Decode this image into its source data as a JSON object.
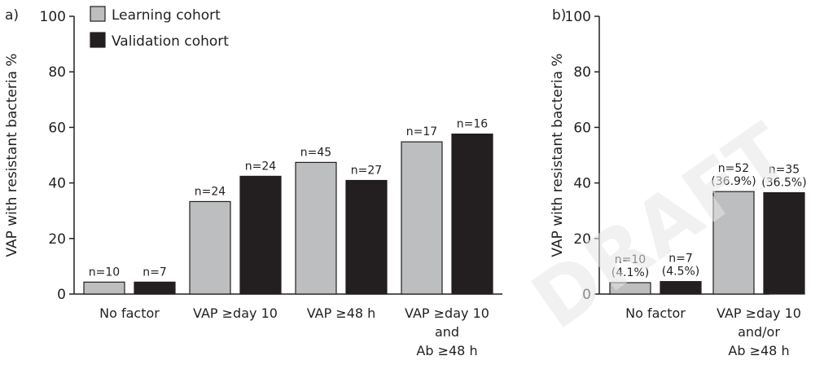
{
  "chart_data": [
    {
      "panel_label": "a)",
      "type": "bar",
      "ylabel": "VAP with resistant bacteria %",
      "xlabel": "",
      "ylim": [
        0,
        100
      ],
      "yticks": [
        "0",
        "20",
        "40",
        "60",
        "80",
        "100"
      ],
      "grid": false,
      "legend_position": "top-left",
      "categories": [
        [
          "No factor"
        ],
        [
          "VAP ≥day 10"
        ],
        [
          "VAP ≥48 h"
        ],
        [
          "VAP ≥day 10",
          "and",
          "Ab ≥48 h"
        ]
      ],
      "series": [
        {
          "name": "Learning cohort",
          "color": "#bcbec0",
          "values": [
            4.3,
            33.3,
            47.4,
            54.8
          ],
          "labels": [
            [
              "n=10"
            ],
            [
              "n=24"
            ],
            [
              "n=45"
            ],
            [
              "n=17"
            ]
          ]
        },
        {
          "name": "Validation cohort",
          "color": "#231f20",
          "values": [
            4.3,
            42.4,
            40.9,
            57.6
          ],
          "labels": [
            [
              "n=7"
            ],
            [
              "n=24"
            ],
            [
              "n=27"
            ],
            [
              "n=16"
            ]
          ]
        }
      ]
    },
    {
      "panel_label": "b)",
      "type": "bar",
      "ylabel": "VAP with resistant bacteria %",
      "xlabel": "",
      "ylim": [
        0,
        100
      ],
      "yticks": [
        "0",
        "20",
        "40",
        "60",
        "80",
        "100"
      ],
      "grid": false,
      "categories": [
        [
          "No factor"
        ],
        [
          "VAP ≥day 10",
          "and/or",
          "Ab ≥48 h"
        ]
      ],
      "series": [
        {
          "name": "Learning cohort",
          "color": "#bcbec0",
          "values": [
            4.1,
            36.9
          ],
          "labels": [
            [
              "n=10",
              "(4.1%)"
            ],
            [
              "n=52",
              "(36.9%)"
            ]
          ]
        },
        {
          "name": "Validation cohort",
          "color": "#231f20",
          "values": [
            4.5,
            36.5
          ],
          "labels": [
            [
              "n=7",
              "(4.5%)"
            ],
            [
              "n=35",
              "(36.5%)"
            ]
          ]
        }
      ]
    }
  ],
  "watermark": {
    "text": "DRAFT",
    "color": "#e6e6e6"
  }
}
